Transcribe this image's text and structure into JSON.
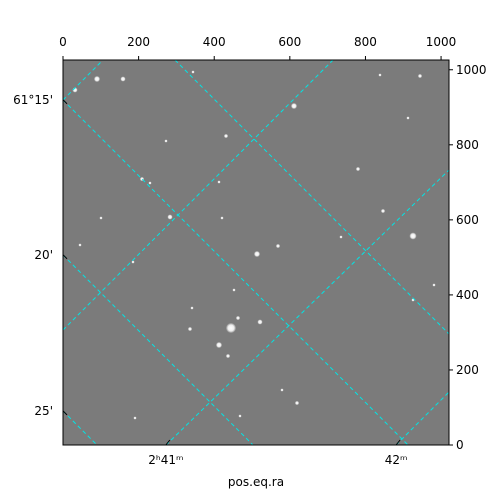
{
  "chart_data": {
    "type": "image",
    "xlim": [
      0,
      1021
    ],
    "ylim": [
      0,
      1026
    ],
    "xticks": [
      0,
      200,
      400,
      600,
      800,
      1000
    ],
    "yticks": [
      0,
      200,
      400,
      600,
      800,
      1000
    ],
    "ra_ticks": [
      {
        "value": 272,
        "label": "2ʰ41ᵐ"
      },
      {
        "value": 881,
        "label": "42ᵐ"
      }
    ],
    "dec_ticks": [
      {
        "value": 920,
        "label": "61°15'"
      },
      {
        "value": 507,
        "label": "20'"
      },
      {
        "value": 91,
        "label": "25'"
      }
    ],
    "xlabel": "pos.eq.ra",
    "grid_color": "#00e5e5"
  }
}
